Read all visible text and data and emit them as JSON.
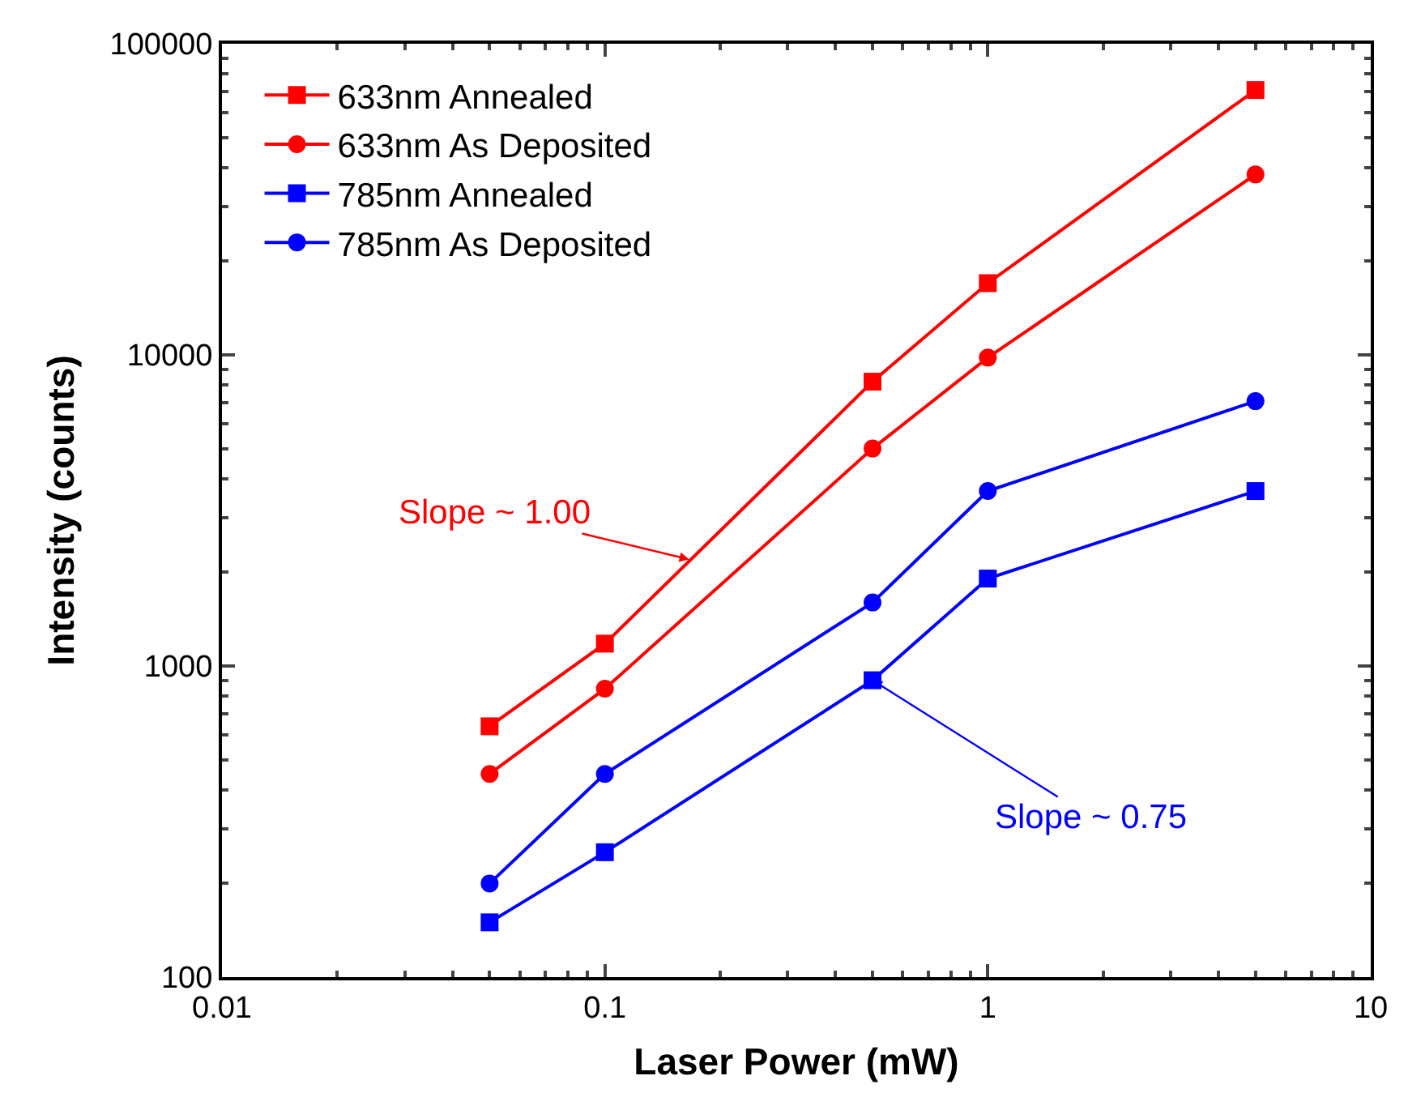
{
  "chart_data": {
    "type": "line",
    "xlabel": "Laser Power (mW)",
    "ylabel": "Intensity (counts)",
    "log": "xy",
    "legend": "top left",
    "x": [
      0.05,
      0.1,
      0.5,
      1,
      5
    ],
    "xlim": [
      0.01,
      10
    ],
    "xticks": [
      0.01,
      0.1,
      1,
      10
    ],
    "ylim": [
      100,
      100000
    ],
    "yticks": [
      100,
      1000,
      10000,
      100000
    ],
    "series": [
      {
        "name": "633nm Annealed",
        "color": "#ff0000",
        "marker": "square",
        "values": [
          640,
          1180,
          8200,
          17000,
          71000
        ]
      },
      {
        "name": "633nm As Deposited",
        "color": "#ff0000",
        "marker": "circle",
        "values": [
          450,
          845,
          5000,
          9800,
          38000
        ]
      },
      {
        "name": "785nm Annealed",
        "color": "#0000ff",
        "marker": "square",
        "values": [
          150,
          252,
          900,
          1910,
          3650
        ]
      },
      {
        "name": "785nm As Deposited",
        "color": "#0000ff",
        "marker": "circle",
        "values": [
          200,
          450,
          1600,
          3650,
          7100
        ]
      }
    ],
    "annotations": [
      {
        "text": "Slope ~ 1.00",
        "x": 0.166,
        "y": 2200
      },
      {
        "text": "Slope ~ 0.75",
        "x": 0.5,
        "y": 900
      }
    ]
  }
}
